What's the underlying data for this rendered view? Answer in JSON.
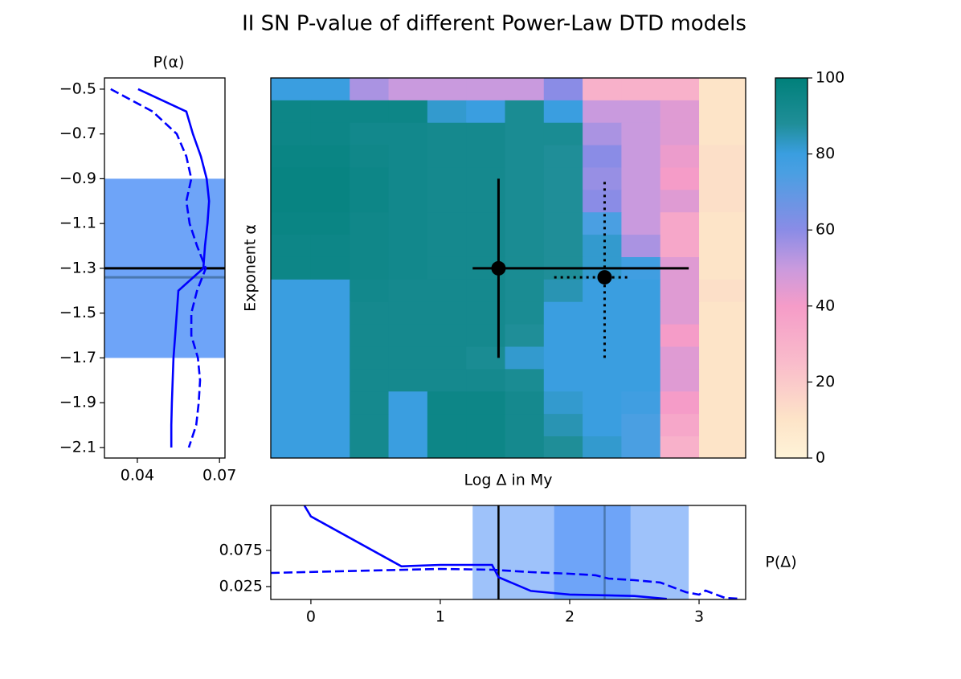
{
  "title": "II SN P-value of different Power-Law DTD models",
  "chart_data": [
    {
      "type": "line",
      "title": "P(α)",
      "xlim": [
        0.028,
        0.072
      ],
      "ylim": [
        -2.147,
        -0.45
      ],
      "xticks": [
        0.04,
        0.07
      ],
      "yticks": [
        {
          "value": -0.5,
          "label": "−0.5"
        },
        {
          "value": -0.7,
          "label": "−0.7"
        },
        {
          "value": -0.9,
          "label": "−0.9"
        },
        {
          "value": -1.1,
          "label": "−1.1"
        },
        {
          "value": -1.3,
          "label": "−1.3"
        },
        {
          "value": -1.5,
          "label": "−1.5"
        },
        {
          "value": -1.7,
          "label": "−1.7"
        },
        {
          "value": -1.9,
          "label": "−1.9"
        },
        {
          "value": -2.1,
          "label": "−2.1"
        }
      ],
      "series": [
        {
          "color": "#0000ff",
          "dash": "solid",
          "x": [
            0.0403,
            0.0579,
            0.0603,
            0.0632,
            0.0653,
            0.0662,
            0.0656,
            0.0647,
            0.0641,
            0.055,
            0.0544,
            0.0538,
            0.0532,
            0.0529,
            0.0526,
            0.0524,
            0.0524
          ],
          "y": [
            -0.5,
            -0.6,
            -0.7,
            -0.8,
            -0.9,
            -1.0,
            -1.1,
            -1.2,
            -1.3,
            -1.4,
            -1.5,
            -1.6,
            -1.7,
            -1.8,
            -1.9,
            -2.0,
            -2.1
          ]
        },
        {
          "color": "#0000ff",
          "dash": "dashed",
          "x": [
            0.0303,
            0.0456,
            0.0544,
            0.0579,
            0.0597,
            0.0579,
            0.0591,
            0.0618,
            0.065,
            0.0618,
            0.0597,
            0.0597,
            0.0621,
            0.0629,
            0.0624,
            0.0615,
            0.0588
          ],
          "y": [
            -0.5,
            -0.6,
            -0.7,
            -0.8,
            -0.9,
            -1.0,
            -1.1,
            -1.2,
            -1.3,
            -1.4,
            -1.5,
            -1.6,
            -1.7,
            -1.8,
            -1.9,
            -2.0,
            -2.1
          ]
        }
      ]
    },
    {
      "type": "heatmap",
      "xlabel": "Log Δ in My",
      "ylabel": "Exponent α",
      "xlim": [
        -0.31,
        3.36
      ],
      "ylim": [
        -2.147,
        -0.45
      ],
      "xbins": [
        -0.31,
        0,
        0.3,
        0.6,
        0.9,
        1.2,
        1.5,
        1.8,
        2.1,
        2.4,
        2.7,
        3.0,
        3.36
      ],
      "y": [
        -0.5,
        -0.6,
        -0.7,
        -0.8,
        -0.9,
        -1.0,
        -1.1,
        -1.2,
        -1.3,
        -1.4,
        -1.5,
        -1.6,
        -1.7,
        -1.8,
        -1.9,
        -2.0,
        -2.1
      ],
      "z": [
        [
          80,
          80,
          55,
          50,
          50,
          50,
          50,
          60,
          30,
          30,
          30,
          10
        ],
        [
          95,
          95,
          95,
          95,
          82,
          80,
          90,
          80,
          50,
          50,
          45,
          10
        ],
        [
          95,
          95,
          93,
          93,
          92,
          92,
          90,
          90,
          55,
          50,
          45,
          10
        ],
        [
          96,
          96,
          94,
          93,
          92,
          92,
          90,
          88,
          60,
          50,
          42,
          12
        ],
        [
          97,
          97,
          95,
          93,
          92,
          92,
          90,
          88,
          58,
          50,
          40,
          12
        ],
        [
          97,
          97,
          95,
          93,
          92,
          92,
          90,
          88,
          60,
          50,
          45,
          12
        ],
        [
          96,
          96,
          94,
          93,
          92,
          92,
          90,
          88,
          75,
          50,
          35,
          10
        ],
        [
          95,
          95,
          94,
          93,
          92,
          92,
          90,
          88,
          82,
          55,
          35,
          10
        ],
        [
          95,
          95,
          94,
          93,
          92,
          92,
          90,
          88,
          82,
          78,
          45,
          10
        ],
        [
          80,
          80,
          93,
          92,
          92,
          92,
          90,
          85,
          80,
          80,
          45,
          12
        ],
        [
          80,
          80,
          92,
          92,
          92,
          92,
          90,
          80,
          80,
          80,
          45,
          10
        ],
        [
          80,
          80,
          92,
          92,
          92,
          92,
          88,
          80,
          80,
          80,
          40,
          10
        ],
        [
          80,
          80,
          92,
          92,
          92,
          90,
          82,
          80,
          80,
          80,
          45,
          10
        ],
        [
          80,
          80,
          92,
          92,
          92,
          92,
          90,
          80,
          80,
          80,
          45,
          10
        ],
        [
          80,
          80,
          92,
          80,
          95,
          95,
          92,
          82,
          80,
          78,
          40,
          10
        ],
        [
          80,
          80,
          92,
          80,
          95,
          95,
          92,
          85,
          80,
          75,
          35,
          10
        ],
        [
          80,
          80,
          92,
          80,
          95,
          95,
          92,
          88,
          82,
          75,
          30,
          10
        ]
      ],
      "zlim": [
        0,
        100
      ],
      "zticks": [
        0,
        20,
        40,
        60,
        80,
        100
      ],
      "colorscale": [
        [
          0,
          "#fef3d8"
        ],
        [
          10,
          "#fde4c8"
        ],
        [
          25,
          "#f9bccb"
        ],
        [
          40,
          "#f59cc8"
        ],
        [
          50,
          "#c99ade"
        ],
        [
          60,
          "#8a8ce6"
        ],
        [
          75,
          "#4a9fe2"
        ],
        [
          80,
          "#3a9ee0"
        ],
        [
          88,
          "#1f8e98"
        ],
        [
          100,
          "#00807a"
        ]
      ],
      "points": [
        {
          "x": 1.45,
          "xlo": 1.25,
          "xhi": 2.92,
          "y": -1.3,
          "ylo": -1.7,
          "yhi": -0.9,
          "style": "solid",
          "line_color": "#000000",
          "band_color": "#3d85f5"
        },
        {
          "x": 2.27,
          "xlo": 1.88,
          "xhi": 2.47,
          "y": -1.34,
          "ylo": -1.7,
          "yhi": -0.9,
          "style": "dotted",
          "line_color": "#4a78b0",
          "band_color": "#3d85f5"
        }
      ]
    },
    {
      "type": "line",
      "ylabel": "P(Δ)",
      "xlim": [
        -0.31,
        3.36
      ],
      "ylim": [
        0.0072,
        0.1372
      ],
      "xticks": [
        0,
        1,
        2,
        3
      ],
      "yticks": [
        0.025,
        0.075
      ],
      "series": [
        {
          "color": "#0000ff",
          "dash": "solid",
          "x": [
            -0.05,
            0,
            0.7,
            1.0,
            1.4,
            1.45,
            1.7,
            2.0,
            2.5,
            2.75
          ],
          "y": [
            0.137,
            0.122,
            0.053,
            0.055,
            0.055,
            0.038,
            0.019,
            0.014,
            0.012,
            0.008
          ]
        },
        {
          "color": "#0000ff",
          "dash": "dashed",
          "x": [
            -0.31,
            1.0,
            1.4,
            1.7,
            2.0,
            2.2,
            2.3,
            2.5,
            2.7,
            2.9,
            3.0,
            3.05,
            3.1,
            3.2,
            3.3
          ],
          "y": [
            0.0439,
            0.0494,
            0.0483,
            0.045,
            0.0428,
            0.0406,
            0.0361,
            0.0339,
            0.0306,
            0.0172,
            0.0139,
            0.0194,
            0.0161,
            0.0094,
            0.0083
          ]
        }
      ]
    }
  ]
}
